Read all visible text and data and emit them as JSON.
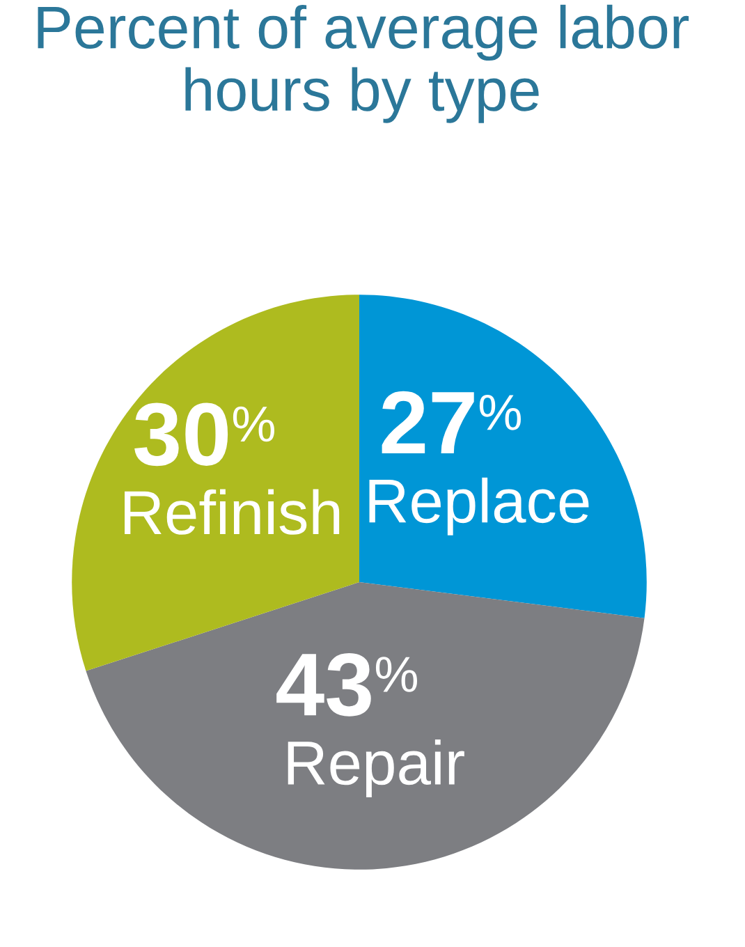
{
  "chart_data": {
    "type": "pie",
    "title": "Percent of average labor\nhours by type",
    "categories": [
      "Replace",
      "Repair",
      "Refinish"
    ],
    "values": [
      27,
      43,
      30
    ],
    "colors": [
      "#0096d6",
      "#7d7e82",
      "#aebb1f"
    ],
    "value_labels": [
      "27%",
      "43%",
      "30%"
    ],
    "legend": false
  }
}
